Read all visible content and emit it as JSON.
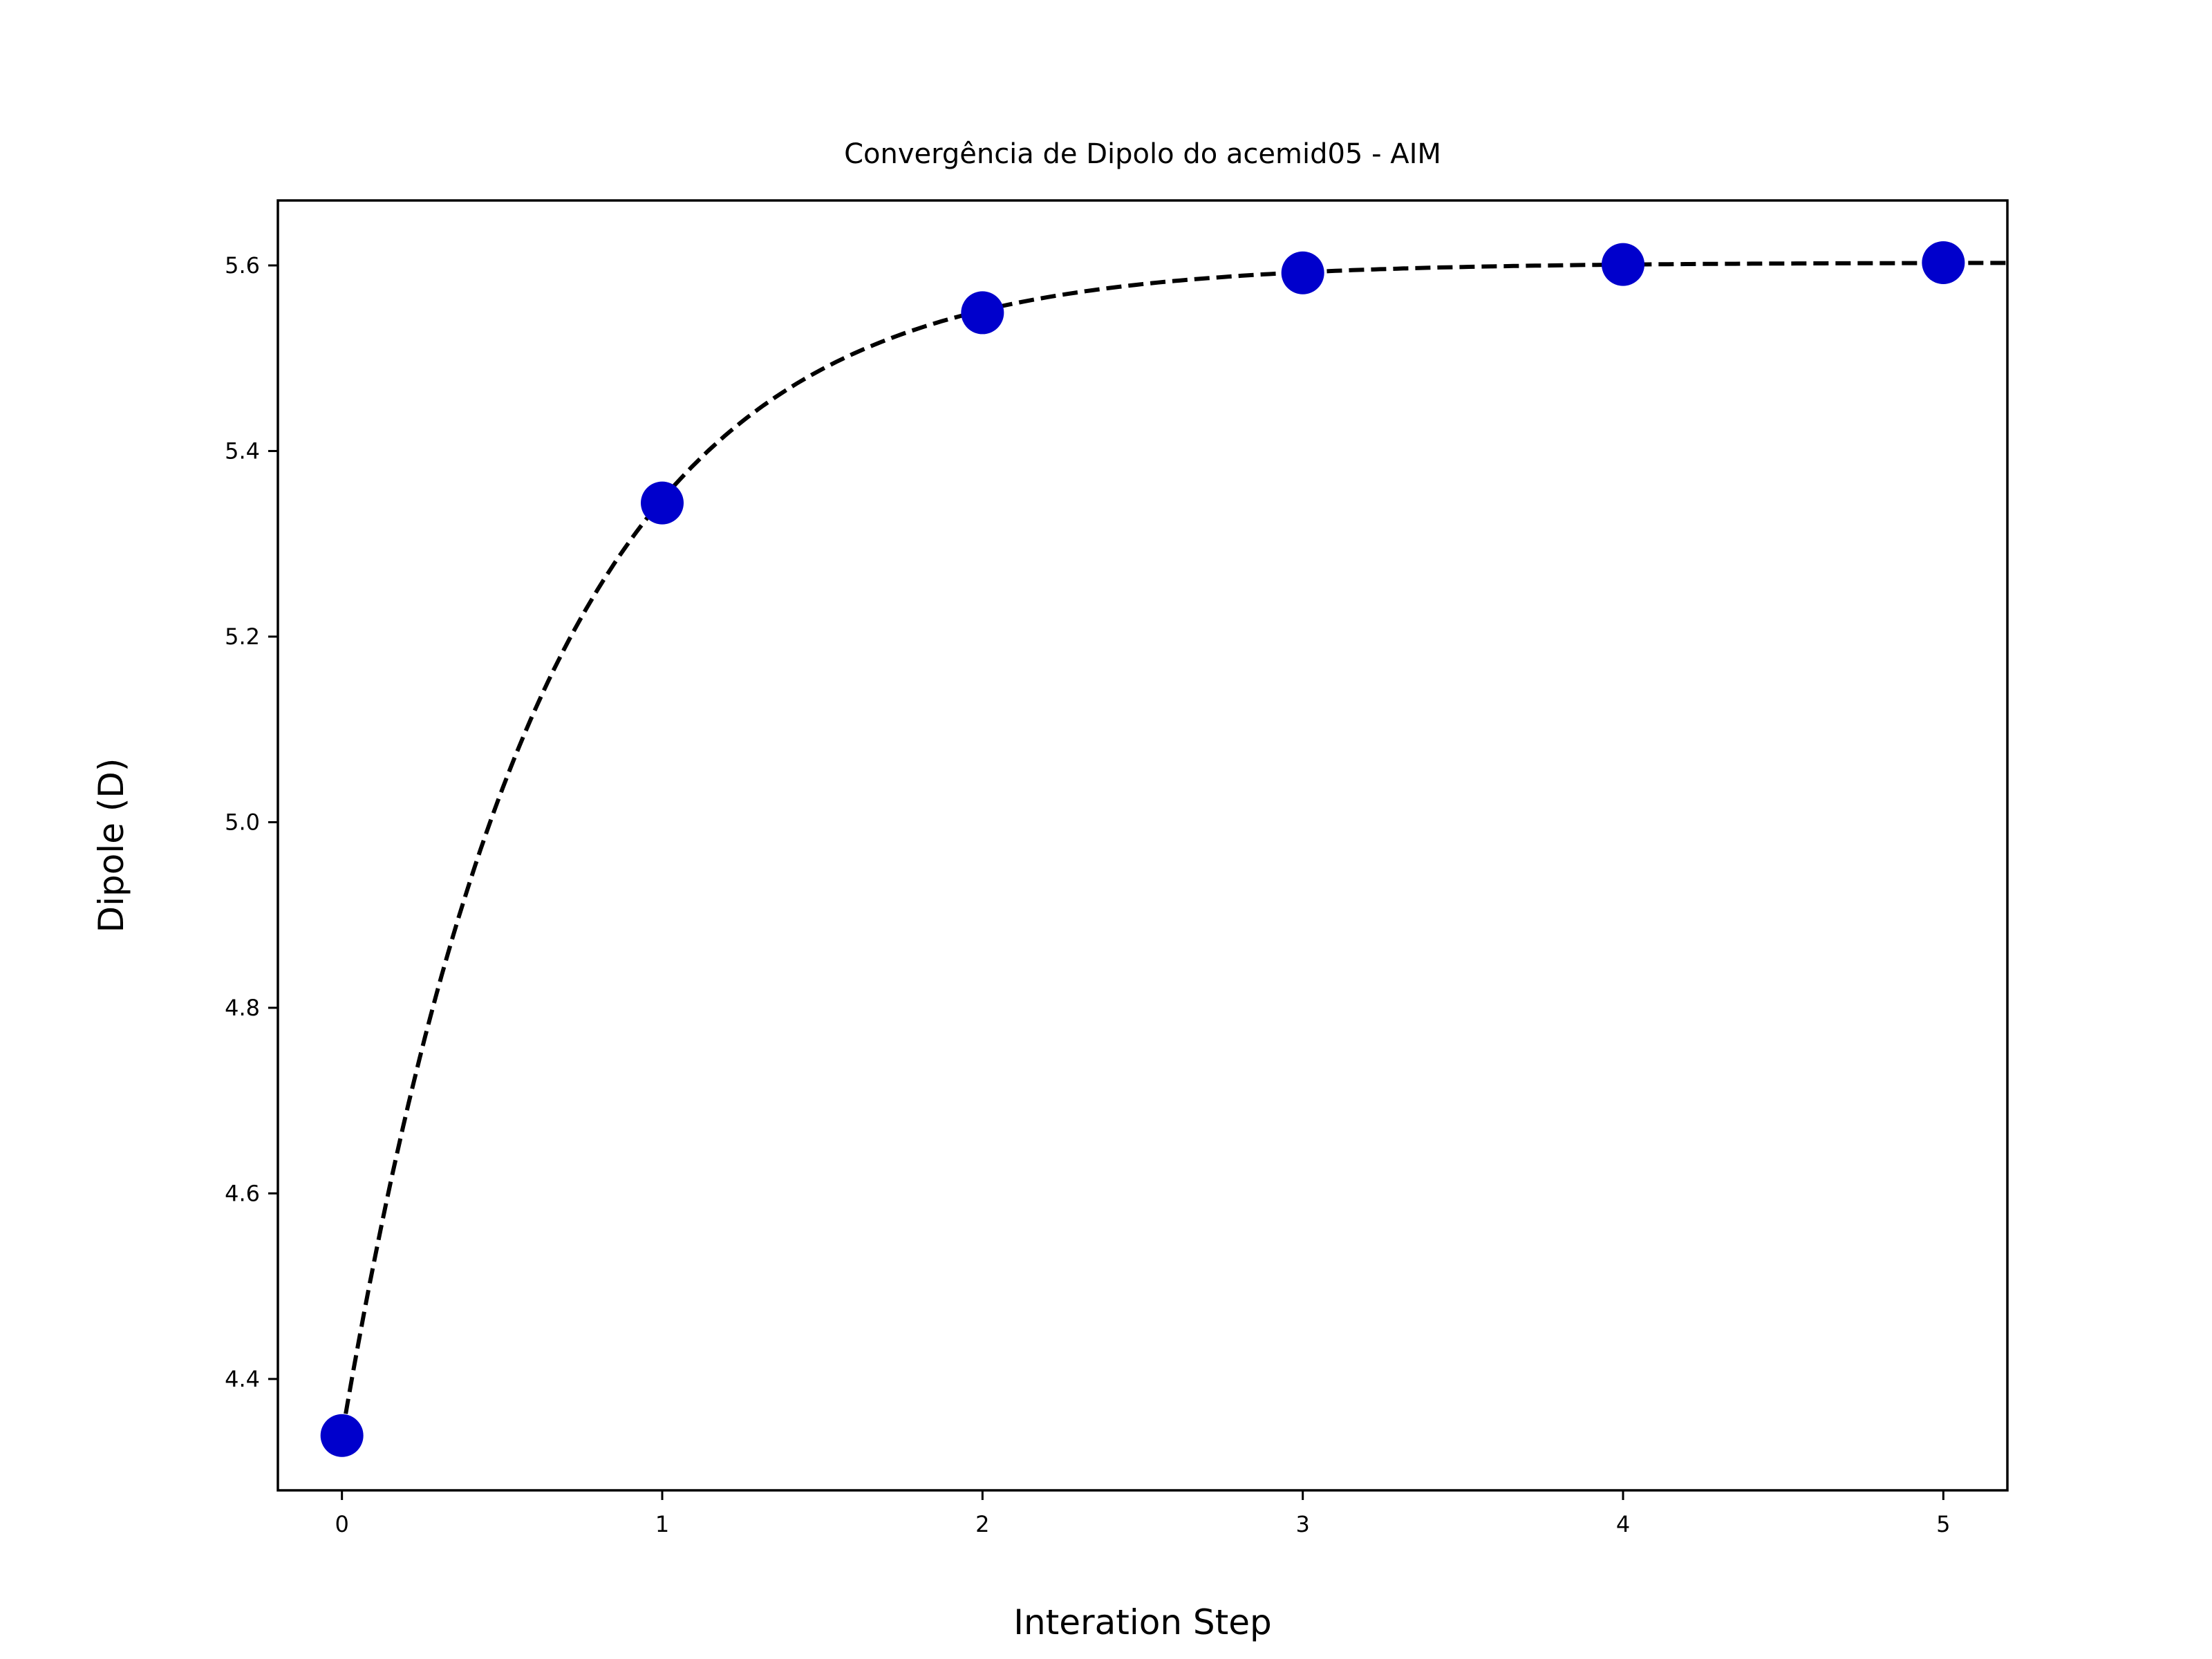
{
  "chart_data": {
    "type": "scatter",
    "title": "Convergência de Dipolo do acemid05 - AIM",
    "xlabel": "Interation Step",
    "ylabel": "Dipole (D)",
    "x": [
      0,
      1,
      2,
      3,
      4,
      5
    ],
    "series": [
      {
        "values": [
          4.339,
          5.344,
          5.549,
          5.592,
          5.601,
          5.603
        ]
      }
    ],
    "fit_curve": {
      "style": "dashed",
      "color": "#000000",
      "model": "exponential-saturation",
      "a": 5.603,
      "b": 1.264,
      "k": 1.6
    },
    "xlim": [
      -0.2,
      5.2
    ],
    "ylim": [
      4.28,
      5.67
    ],
    "xticks": [
      0,
      1,
      2,
      3,
      4,
      5
    ],
    "yticks": [
      4.4,
      4.6,
      4.8,
      5.0,
      5.2,
      5.4,
      5.6
    ],
    "ytick_labels": [
      "4.4",
      "4.6",
      "4.8",
      "5.0",
      "5.2",
      "5.4",
      "5.6"
    ],
    "marker_color": "#0000cc",
    "grid": false,
    "legend": "none"
  }
}
